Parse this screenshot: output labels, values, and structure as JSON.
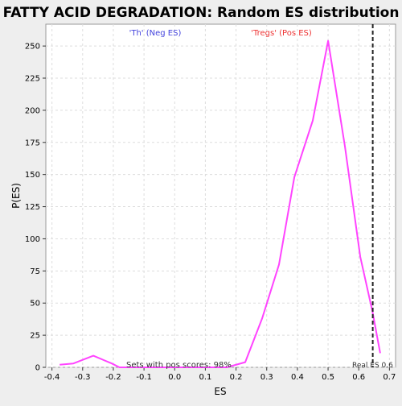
{
  "chart_data": {
    "type": "line",
    "title": "FATTY ACID DEGRADATION: Random ES distribution",
    "xlabel": "ES",
    "ylabel": "P(ES)",
    "xlim": [
      -0.42,
      0.72
    ],
    "ylim": [
      0,
      267
    ],
    "x_ticks": [
      -0.4,
      -0.3,
      -0.2,
      -0.1,
      0.0,
      0.1,
      0.2,
      0.3,
      0.4,
      0.5,
      0.6,
      0.7
    ],
    "x_tick_labels": [
      "-0.4",
      "-0.3",
      "-0.2",
      "-0.1",
      "0.0",
      "0.1",
      "0.2",
      "0.3",
      "0.4",
      "0.5",
      "0.6",
      "0.7"
    ],
    "y_ticks": [
      0,
      25,
      50,
      75,
      100,
      125,
      150,
      175,
      200,
      225,
      250
    ],
    "y_tick_labels": [
      "0",
      "25",
      "50",
      "75",
      "100",
      "125",
      "150",
      "175",
      "200",
      "225",
      "250"
    ],
    "grid": true,
    "series": [
      {
        "color": "#ff44ff",
        "x": [
          -0.375,
          -0.33,
          -0.265,
          -0.205,
          -0.18,
          -0.12,
          0.1,
          0.17,
          0.23,
          0.285,
          0.34,
          0.39,
          0.45,
          0.5,
          0.555,
          0.605,
          0.645,
          0.67
        ],
        "y": [
          2,
          3,
          9,
          3,
          0,
          0,
          0,
          0,
          4,
          38,
          80,
          148,
          192,
          254,
          172,
          86,
          43,
          11
        ]
      }
    ],
    "real_es": 0.6456,
    "annotations": {
      "neg_label": "'Th' (Neg ES)",
      "pos_label": "'Tregs' (Pos ES)",
      "pos_scores": "Sets with pos scores: 98%",
      "real_es_label": "Real ES 0.6"
    },
    "colors": {
      "line": "#ff44ff",
      "neg_label": "#4444dd",
      "pos_label": "#ee3333",
      "real_es_line": "#222222",
      "plot_bg": "#ffffff",
      "page_bg": "#eeeeee",
      "grid": "#dddddd"
    }
  }
}
